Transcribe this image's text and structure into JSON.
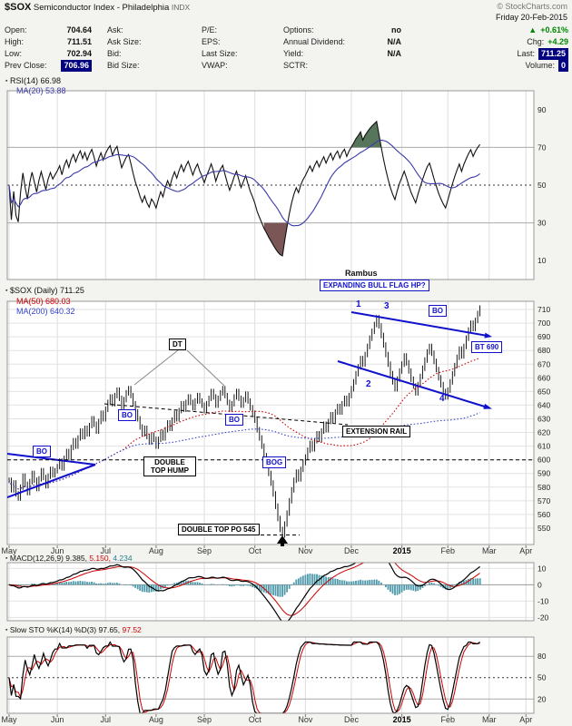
{
  "header": {
    "symbol": "$SOX",
    "name": "Semiconductor Index - Philadelphia",
    "exchange": "INDX",
    "copyright": "© StockCharts.com",
    "date": "Friday 20-Feb-2015",
    "quote": {
      "open_label": "Open:",
      "open": "704.64",
      "high_label": "High:",
      "high": "711.51",
      "low_label": "Low:",
      "low": "702.94",
      "prev_close_label": "Prev Close:",
      "prev_close": "706.96",
      "ask_label": "Ask:",
      "ask_size_label": "Ask Size:",
      "bid_label": "Bid:",
      "bid_size_label": "Bid Size:",
      "pe_label": "P/E:",
      "eps_label": "EPS:",
      "last_size_label": "Last Size:",
      "vwap_label": "VWAP:",
      "options_label": "Options:",
      "options": "no",
      "dividend_label": "Annual Dividend:",
      "dividend": "N/A",
      "yield_label": "Yield:",
      "yield_value": "N/A",
      "sctr_label": "SCTR:",
      "up_triangle": "▲",
      "pct_change": "+0.61%",
      "chg_label": "Chg:",
      "chg": "+4.29",
      "last_label": "Last:",
      "last": "711.25",
      "volume_label": "Volume:",
      "volume": "0"
    }
  },
  "panels": {
    "rsi": {
      "icon": "▪",
      "label": "RSI(14) 66.98",
      "ma": "MA(20) 53.88"
    },
    "main": {
      "icon": "▪",
      "label": "$SOX (Daily) 711.25",
      "ma50": "MA(50) 680.03",
      "ma200": "MA(200) 640.32"
    },
    "macd": {
      "icon": "▪",
      "label": "MACD(12,26,9)",
      "v1": "9.385,",
      "v2": "5.150,",
      "v3": "4.234"
    },
    "sto": {
      "icon": "▪",
      "label": "Slow STO %K(14) %D(3)",
      "v1": "97.65,",
      "v2": "97.52"
    }
  },
  "annotations": {
    "rambus": "Rambus",
    "flag": "EXPANDING BULL FLAG HP?",
    "bo": "BO",
    "bog": "BOG",
    "bt": "BT 690",
    "dt": "DT",
    "hump": "DOUBLE TOP HUMP",
    "rail": "EXTENSION RAIL",
    "po545": "DOUBLE TOP PO 545",
    "n1": "1",
    "n2": "2",
    "n3": "3",
    "n4": "4"
  },
  "colors": {
    "up_green": "#008800",
    "navy_chip": "#000080",
    "annotation_blue": "#1111cc",
    "macd_hist": "#4e9aaa",
    "signal_red": "#cc0000",
    "ma200_blue": "#3344cc",
    "rsi_ma_blue": "#3a3aa8",
    "rsi_fill_over": "#56755a",
    "rsi_fill_under": "#7a5656"
  },
  "chart_data": {
    "type": "ohlc",
    "title": "$SOX (Daily)",
    "last": 711.25,
    "x_months": [
      {
        "label": "May",
        "i": 0
      },
      {
        "label": "Jun",
        "i": 21
      },
      {
        "label": "Jul",
        "i": 42
      },
      {
        "label": "Aug",
        "i": 64
      },
      {
        "label": "Sep",
        "i": 85
      },
      {
        "label": "Oct",
        "i": 107
      },
      {
        "label": "Nov",
        "i": 129
      },
      {
        "label": "Dec",
        "i": 149
      },
      {
        "label": "2015",
        "i": 171
      },
      {
        "label": "Feb",
        "i": 191
      },
      {
        "label": "Mar",
        "i": 209
      },
      {
        "label": "Apr",
        "i": 225
      }
    ],
    "closes": [
      585,
      578,
      583,
      575,
      572,
      580,
      588,
      582,
      576,
      584,
      590,
      585,
      579,
      586,
      592,
      587,
      581,
      588,
      593,
      589,
      592,
      595,
      599,
      594,
      601,
      606,
      602,
      609,
      614,
      610,
      616,
      621,
      617,
      623,
      619,
      625,
      630,
      626,
      621,
      628,
      634,
      630,
      637,
      642,
      646,
      641,
      647,
      651,
      645,
      639,
      644,
      649,
      652,
      647,
      641,
      635,
      630,
      624,
      619,
      623,
      617,
      613,
      618,
      615,
      610,
      615,
      620,
      616,
      622,
      627,
      623,
      629,
      634,
      630,
      636,
      641,
      637,
      642,
      646,
      642,
      638,
      643,
      647,
      643,
      640,
      636,
      641,
      645,
      650,
      646,
      640,
      645,
      649,
      652,
      647,
      642,
      637,
      641,
      646,
      650,
      645,
      640,
      644,
      648,
      643,
      638,
      634,
      629,
      622,
      616,
      610,
      603,
      597,
      590,
      583,
      575,
      566,
      557,
      549,
      545,
      553,
      561,
      570,
      578,
      585,
      591,
      586,
      593,
      598,
      602,
      607,
      612,
      608,
      614,
      619,
      615,
      621,
      626,
      622,
      628,
      633,
      629,
      635,
      639,
      635,
      641,
      645,
      641,
      647,
      652,
      657,
      663,
      668,
      674,
      670,
      677,
      683,
      689,
      694,
      699,
      704,
      698,
      691,
      684,
      677,
      670,
      663,
      657,
      652,
      659,
      665,
      670,
      676,
      671,
      665,
      659,
      654,
      649,
      655,
      661,
      667,
      673,
      679,
      683,
      678,
      672,
      666,
      660,
      655,
      650,
      646,
      651,
      657,
      663,
      669,
      675,
      681,
      676,
      683,
      689,
      695,
      700,
      696,
      702,
      707,
      711
    ],
    "price_axis": {
      "ticks": [
        710,
        700,
        690,
        680,
        670,
        660,
        650,
        640,
        630,
        620,
        610,
        600,
        590,
        580,
        570,
        560,
        550
      ],
      "ylim": [
        538,
        716
      ]
    },
    "rsi": {
      "period": 14,
      "value": 66.98,
      "ma_period": 20,
      "ma_value": 53.88,
      "ticks": [
        90,
        70,
        50,
        30,
        10
      ],
      "overbought": 70,
      "oversold": 30,
      "ylim": [
        0,
        100
      ]
    },
    "ma50": {
      "period": 50,
      "value": 680.03
    },
    "ma200": {
      "period": 200,
      "value": 640.32
    },
    "macd": {
      "fast": 12,
      "slow": 26,
      "signal": 9,
      "macd_value": 9.385,
      "signal_value": 5.15,
      "hist_value": 4.234,
      "ticks": [
        10,
        0,
        -10,
        -20
      ],
      "ylim": [
        -20,
        10
      ]
    },
    "slow_sto": {
      "k": 14,
      "d": 3,
      "k_value": 97.65,
      "d_value": 97.52,
      "ticks": [
        80,
        50,
        20
      ],
      "ylim": [
        0,
        100
      ]
    },
    "levels": {
      "extension_rail": 600,
      "double_top_po": 545,
      "bt": 690
    }
  }
}
